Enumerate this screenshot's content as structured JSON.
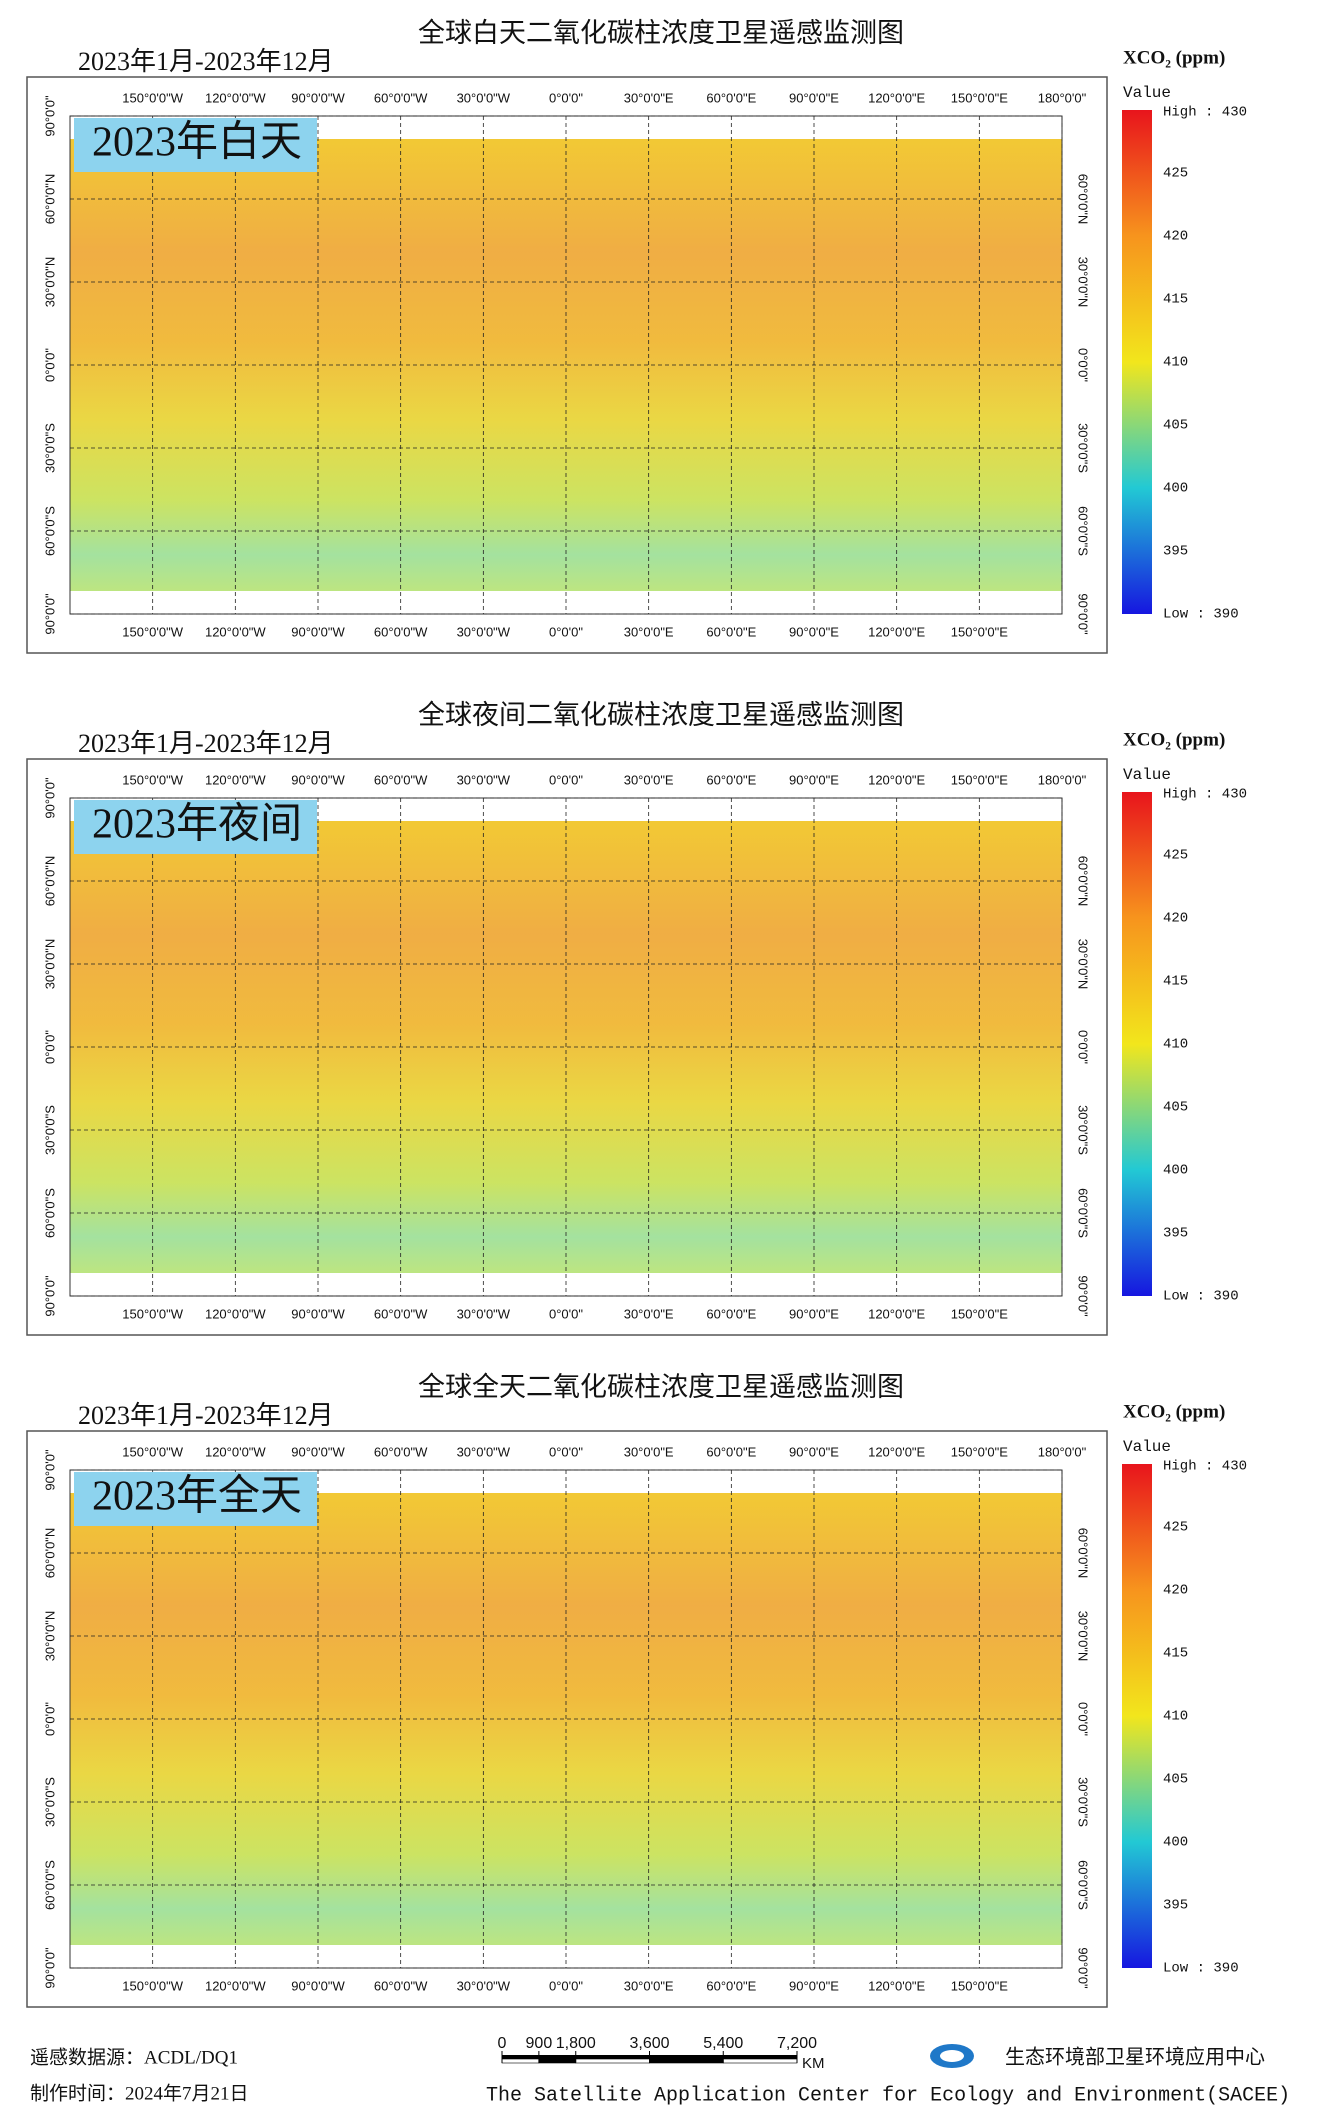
{
  "panels": [
    {
      "title": "全球白天二氧化碳柱浓度卫星遥感监测图",
      "period": "2023年1月-2023年12月",
      "label": "2023年白天"
    },
    {
      "title": "全球夜间二氧化碳柱浓度卫星遥感监测图",
      "period": "2023年1月-2023年12月",
      "label": "2023年夜间"
    },
    {
      "title": "全球全天二氧化碳柱浓度卫星遥感监测图",
      "period": "2023年1月-2023年12月",
      "label": "2023年全天"
    }
  ],
  "map_axes": {
    "lon_lim": [
      -180,
      180
    ],
    "lat_lim": [
      -90,
      90
    ],
    "lon_ticks_top": [
      {
        "value": -150,
        "label": "150°0'0\"W"
      },
      {
        "value": -120,
        "label": "120°0'0\"W"
      },
      {
        "value": -90,
        "label": "90°0'0\"W"
      },
      {
        "value": -60,
        "label": "60°0'0\"W"
      },
      {
        "value": -30,
        "label": "30°0'0\"W"
      },
      {
        "value": 0,
        "label": "0°0'0\""
      },
      {
        "value": 30,
        "label": "30°0'0\"E"
      },
      {
        "value": 60,
        "label": "60°0'0\"E"
      },
      {
        "value": 90,
        "label": "90°0'0\"E"
      },
      {
        "value": 120,
        "label": "120°0'0\"E"
      },
      {
        "value": 150,
        "label": "150°0'0\"E"
      },
      {
        "value": 180,
        "label": "180°0'0\""
      }
    ],
    "lon_ticks_bottom": [
      {
        "value": -150,
        "label": "150°0'0\"W"
      },
      {
        "value": -120,
        "label": "120°0'0\"W"
      },
      {
        "value": -90,
        "label": "90°0'0\"W"
      },
      {
        "value": -60,
        "label": "60°0'0\"W"
      },
      {
        "value": -30,
        "label": "30°0'0\"W"
      },
      {
        "value": 0,
        "label": "0°0'0\""
      },
      {
        "value": 30,
        "label": "30°0'0\"E"
      },
      {
        "value": 60,
        "label": "60°0'0\"E"
      },
      {
        "value": 90,
        "label": "90°0'0\"E"
      },
      {
        "value": 120,
        "label": "120°0'0\"E"
      },
      {
        "value": 150,
        "label": "150°0'0\"E"
      }
    ],
    "lat_ticks_left": [
      {
        "value": 90,
        "label": "90°0'0\""
      },
      {
        "value": 60,
        "label": "60°0'0\"N"
      },
      {
        "value": 30,
        "label": "30°0'0\"N"
      },
      {
        "value": 0,
        "label": "0°0'0\""
      },
      {
        "value": -30,
        "label": "30°0'0\"S"
      },
      {
        "value": -60,
        "label": "60°0'0\"S"
      },
      {
        "value": -90,
        "label": "90°0'0\""
      }
    ],
    "lat_ticks_right": [
      {
        "value": 60,
        "label": "60°0'0\"N"
      },
      {
        "value": 30,
        "label": "30°0'0\"N"
      },
      {
        "value": 0,
        "label": "0°0'0\""
      },
      {
        "value": -30,
        "label": "30°0'0\"S"
      },
      {
        "value": -60,
        "label": "60°0'0\"S"
      },
      {
        "value": -90,
        "label": "90°0'0\""
      }
    ]
  },
  "legend": {
    "title": "XCO₂ (ppm)",
    "field": "Value",
    "high": "High : 430",
    "low": "Low : 390",
    "lim": [
      390,
      430
    ],
    "ticks": [
      425,
      420,
      415,
      410,
      405,
      400,
      395
    ]
  },
  "footer": {
    "source": "遥感数据源：ACDL/DQ1",
    "made": "制作时间：2024年7月21日",
    "org_cn": "生态环境部卫星环境应用中心",
    "org_en": "The Satellite Application Center for Ecology and Environment(SACEE)",
    "scale_ticks": [
      0,
      900,
      {
        "value": 1800,
        "label": "1,800"
      },
      {
        "value": 3600,
        "label": "3,600"
      },
      {
        "value": 5400,
        "label": "5,400"
      },
      {
        "value": 7200,
        "label": "7,200"
      }
    ],
    "scale_unit": "KM"
  }
}
